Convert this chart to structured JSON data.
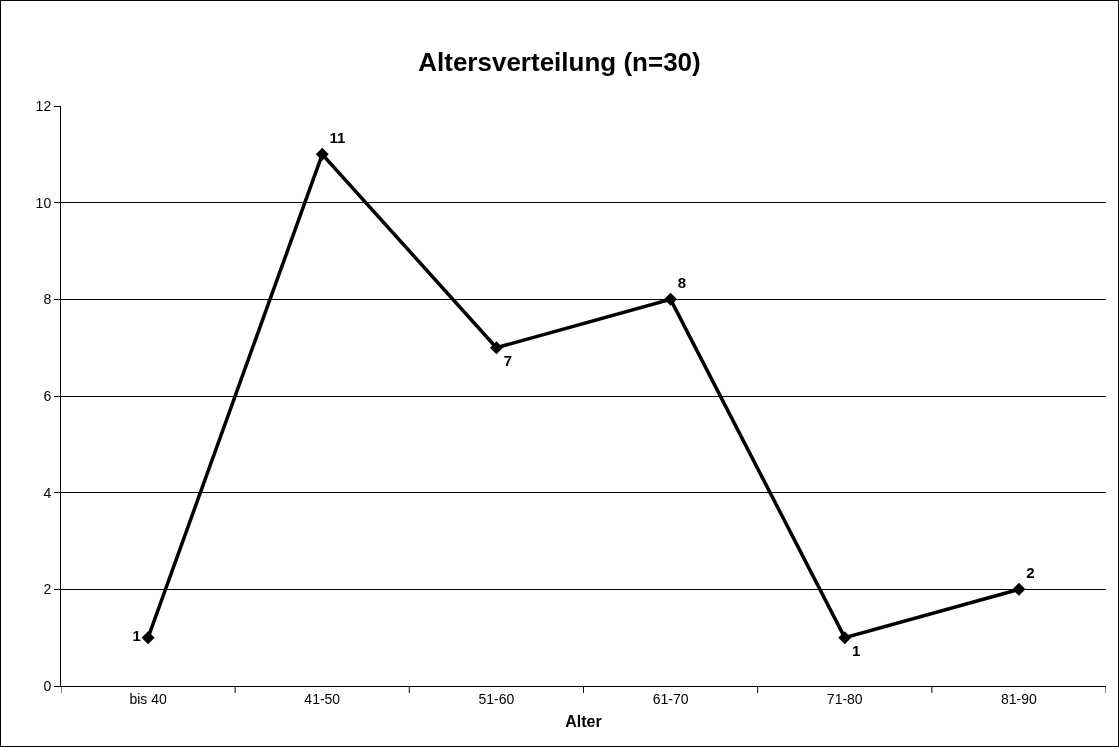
{
  "chart_data": {
    "type": "line",
    "title": "Altersverteilung (n=30)",
    "xlabel": "Alter",
    "categories": [
      "bis 40",
      "41-50",
      "51-60",
      "61-70",
      "71-80",
      "81-90"
    ],
    "series": [
      {
        "color": "#000000",
        "values": [
          1,
          11,
          7,
          8,
          1,
          2
        ]
      }
    ],
    "ylim": [
      0,
      12
    ],
    "yticks": [
      0,
      2,
      4,
      6,
      8,
      10,
      12
    ],
    "grid": "y",
    "marker": "diamond",
    "line_style": "solid",
    "data_labels": true
  }
}
